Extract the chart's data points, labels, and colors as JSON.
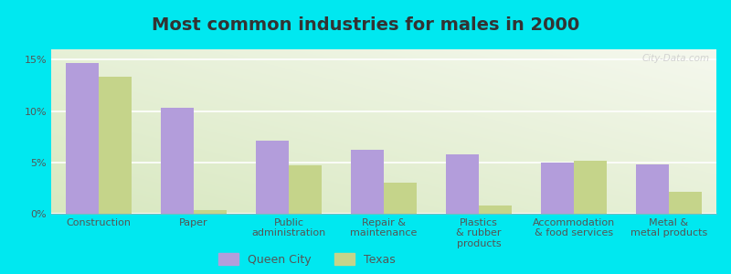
{
  "title": "Most common industries for males in 2000",
  "categories": [
    "Construction",
    "Paper",
    "Public\nadministration",
    "Repair &\nmaintenance",
    "Plastics\n& rubber\nproducts",
    "Accommodation\n& food services",
    "Metal &\nmetal products"
  ],
  "queen_city": [
    14.7,
    10.3,
    7.1,
    6.2,
    5.8,
    5.0,
    4.8
  ],
  "texas": [
    13.3,
    0.4,
    4.7,
    3.0,
    0.8,
    5.2,
    2.1
  ],
  "queen_city_color": "#b39ddb",
  "texas_color": "#c5d48a",
  "background_outer": "#00e8f0",
  "grid_color": "#ffffff",
  "bar_width": 0.35,
  "ylim": [
    0,
    16
  ],
  "yticks": [
    0,
    5,
    10,
    15
  ],
  "ytick_labels": [
    "0%",
    "5%",
    "10%",
    "15%"
  ],
  "legend_labels": [
    "Queen City",
    "Texas"
  ],
  "title_fontsize": 14,
  "tick_fontsize": 8,
  "label_fontsize": 8
}
